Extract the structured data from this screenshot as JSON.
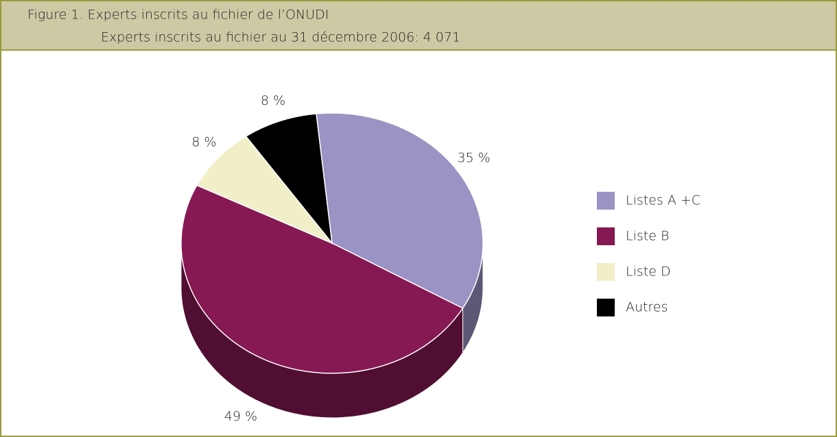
{
  "chart_data": {
    "type": "pie",
    "title": "Figure 1.  Experts inscrits au fichier de l’ONUDI",
    "subtitle": "Experts inscrits au fichier au 31 décembre 2006: 4 071",
    "categories": [
      "Listes A +C",
      "Liste B",
      "Liste D",
      "Autres"
    ],
    "values": [
      35,
      49,
      8,
      8
    ],
    "value_labels": [
      "35 %",
      "49 %",
      "8 %",
      "8 %"
    ],
    "colors": [
      "#9b93c3",
      "#861853",
      "#f0efc8",
      "#000000"
    ],
    "legend": "right"
  }
}
